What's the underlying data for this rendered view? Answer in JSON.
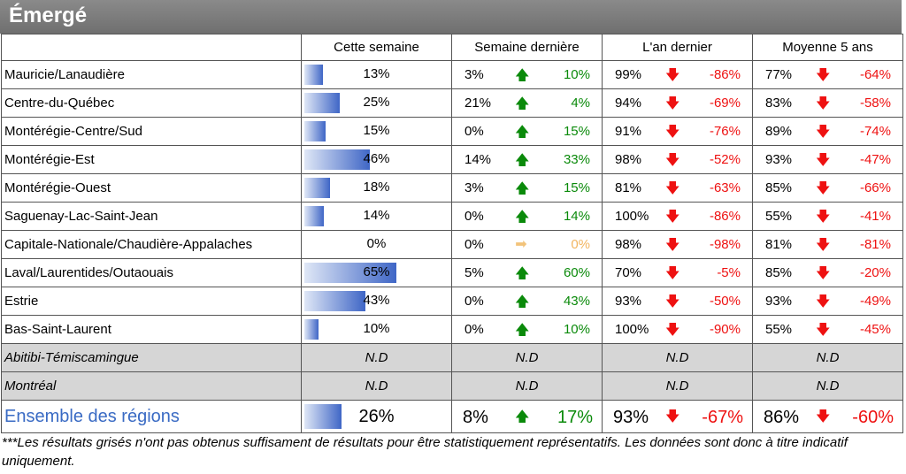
{
  "title": "Émergé",
  "headers": [
    "",
    "Cette semaine",
    "Semaine dernière",
    "L'an dernier",
    "Moyenne 5 ans"
  ],
  "rows": [
    {
      "region": "Mauricie/Lanaudière",
      "week": "13%",
      "bar": 0.13,
      "last_week": "3%",
      "last_week_dir": "up",
      "last_week_diff": "10%",
      "last_year": "99%",
      "last_year_dir": "down",
      "last_year_diff": "-86%",
      "avg5": "77%",
      "avg5_dir": "down",
      "avg5_diff": "-64%"
    },
    {
      "region": "Centre-du-Québec",
      "week": "25%",
      "bar": 0.25,
      "last_week": "21%",
      "last_week_dir": "up",
      "last_week_diff": "4%",
      "last_year": "94%",
      "last_year_dir": "down",
      "last_year_diff": "-69%",
      "avg5": "83%",
      "avg5_dir": "down",
      "avg5_diff": "-58%"
    },
    {
      "region": "Montérégie-Centre/Sud",
      "week": "15%",
      "bar": 0.15,
      "last_week": "0%",
      "last_week_dir": "up",
      "last_week_diff": "15%",
      "last_year": "91%",
      "last_year_dir": "down",
      "last_year_diff": "-76%",
      "avg5": "89%",
      "avg5_dir": "down",
      "avg5_diff": "-74%"
    },
    {
      "region": "Montérégie-Est",
      "week": "46%",
      "bar": 0.46,
      "last_week": "14%",
      "last_week_dir": "up",
      "last_week_diff": "33%",
      "last_year": "98%",
      "last_year_dir": "down",
      "last_year_diff": "-52%",
      "avg5": "93%",
      "avg5_dir": "down",
      "avg5_diff": "-47%"
    },
    {
      "region": "Montérégie-Ouest",
      "week": "18%",
      "bar": 0.18,
      "last_week": "3%",
      "last_week_dir": "up",
      "last_week_diff": "15%",
      "last_year": "81%",
      "last_year_dir": "down",
      "last_year_diff": "-63%",
      "avg5": "85%",
      "avg5_dir": "down",
      "avg5_diff": "-66%"
    },
    {
      "region": "Saguenay-Lac-Saint-Jean",
      "week": "14%",
      "bar": 0.14,
      "last_week": "0%",
      "last_week_dir": "up",
      "last_week_diff": "14%",
      "last_year": "100%",
      "last_year_dir": "down",
      "last_year_diff": "-86%",
      "avg5": "55%",
      "avg5_dir": "down",
      "avg5_diff": "-41%"
    },
    {
      "region": "Capitale-Nationale/Chaudière-Appalaches",
      "week": "0%",
      "bar": 0,
      "last_week": "0%",
      "last_week_dir": "flat",
      "last_week_diff": "0%",
      "last_year": "98%",
      "last_year_dir": "down",
      "last_year_diff": "-98%",
      "avg5": "81%",
      "avg5_dir": "down",
      "avg5_diff": "-81%"
    },
    {
      "region": "Laval/Laurentides/Outaouais",
      "week": "65%",
      "bar": 0.65,
      "last_week": "5%",
      "last_week_dir": "up",
      "last_week_diff": "60%",
      "last_year": "70%",
      "last_year_dir": "down",
      "last_year_diff": "-5%",
      "avg5": "85%",
      "avg5_dir": "down",
      "avg5_diff": "-20%"
    },
    {
      "region": "Estrie",
      "week": "43%",
      "bar": 0.43,
      "last_week": "0%",
      "last_week_dir": "up",
      "last_week_diff": "43%",
      "last_year": "93%",
      "last_year_dir": "down",
      "last_year_diff": "-50%",
      "avg5": "93%",
      "avg5_dir": "down",
      "avg5_diff": "-49%"
    },
    {
      "region": "Bas-Saint-Laurent",
      "week": "10%",
      "bar": 0.1,
      "last_week": "0%",
      "last_week_dir": "up",
      "last_week_diff": "10%",
      "last_year": "100%",
      "last_year_dir": "down",
      "last_year_diff": "-90%",
      "avg5": "55%",
      "avg5_dir": "down",
      "avg5_diff": "-45%"
    }
  ],
  "nd_rows": [
    {
      "region": "Abitibi-Témiscamingue",
      "value": "N.D"
    },
    {
      "region": "Montréal",
      "value": "N.D"
    }
  ],
  "total": {
    "region": "Ensemble des régions",
    "week": "26%",
    "bar": 0.26,
    "last_week": "8%",
    "last_week_dir": "up",
    "last_week_diff": "17%",
    "last_year": "93%",
    "last_year_dir": "down",
    "last_year_diff": "-67%",
    "avg5": "86%",
    "avg5_dir": "down",
    "avg5_diff": "-60%"
  },
  "footnote": "***Les résultats grisés n'ont pas obtenus suffisament de résultats pour être statistiquement représentatifs. Les données sont donc à titre indicatif uniquement.",
  "colors": {
    "up": "#0a8a0a",
    "down": "#ee1111",
    "flat": "#f2b560",
    "flat_arrow": "#f2c37a",
    "bar_end": "#3f66c6",
    "total_label": "#3a6bc4"
  },
  "arrows": {
    "up": "arrow-up-icon",
    "down": "arrow-down-icon",
    "flat": "arrow-right-icon"
  }
}
